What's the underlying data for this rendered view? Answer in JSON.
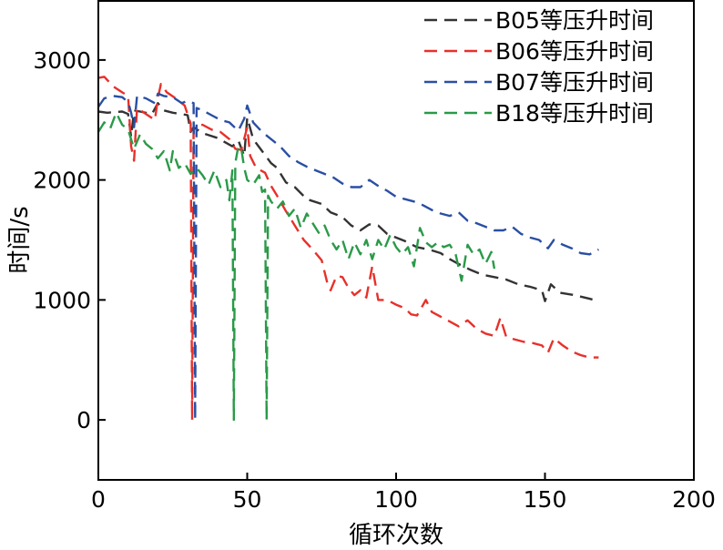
{
  "chart_data": {
    "type": "line",
    "xlabel": "循环次数",
    "ylabel": "时间/s",
    "xlim": [
      0,
      200
    ],
    "ylim": [
      -500,
      3500
    ],
    "x_ticks": [
      0,
      50,
      100,
      150,
      200
    ],
    "y_ticks": [
      0,
      1000,
      2000,
      3000
    ],
    "grid": false,
    "legend_position": "top-right",
    "line_style": "dashed",
    "series": [
      {
        "name": "B05等压升时间",
        "color": "#333333",
        "points": [
          [
            0,
            2570
          ],
          [
            3,
            2560
          ],
          [
            8,
            2570
          ],
          [
            10,
            2550
          ],
          [
            11,
            2360
          ],
          [
            12,
            2580
          ],
          [
            14,
            2570
          ],
          [
            18,
            2550
          ],
          [
            20,
            2640
          ],
          [
            22,
            2580
          ],
          [
            25,
            2560
          ],
          [
            28,
            2550
          ],
          [
            30,
            2540
          ],
          [
            31,
            2400
          ],
          [
            32,
            2440
          ],
          [
            35,
            2390
          ],
          [
            40,
            2350
          ],
          [
            45,
            2280
          ],
          [
            47,
            2330
          ],
          [
            49,
            2200
          ],
          [
            50,
            2520
          ],
          [
            52,
            2340
          ],
          [
            55,
            2240
          ],
          [
            58,
            2140
          ],
          [
            60,
            2100
          ],
          [
            63,
            1980
          ],
          [
            66,
            1940
          ],
          [
            70,
            1840
          ],
          [
            75,
            1800
          ],
          [
            78,
            1730
          ],
          [
            80,
            1710
          ],
          [
            82,
            1690
          ],
          [
            85,
            1620
          ],
          [
            88,
            1580
          ],
          [
            91,
            1630
          ],
          [
            94,
            1620
          ],
          [
            97,
            1550
          ],
          [
            100,
            1520
          ],
          [
            103,
            1490
          ],
          [
            107,
            1440
          ],
          [
            111,
            1420
          ],
          [
            115,
            1390
          ],
          [
            118,
            1340
          ],
          [
            121,
            1300
          ],
          [
            125,
            1250
          ],
          [
            129,
            1210
          ],
          [
            133,
            1190
          ],
          [
            137,
            1170
          ],
          [
            141,
            1130
          ],
          [
            145,
            1110
          ],
          [
            149,
            1080
          ],
          [
            150,
            990
          ],
          [
            152,
            1130
          ],
          [
            155,
            1060
          ],
          [
            160,
            1040
          ],
          [
            165,
            1010
          ],
          [
            168,
            990
          ]
        ]
      },
      {
        "name": "B06等压升时间",
        "color": "#e8302a",
        "points": [
          [
            0,
            2850
          ],
          [
            2,
            2860
          ],
          [
            5,
            2780
          ],
          [
            8,
            2730
          ],
          [
            10,
            2700
          ],
          [
            11,
            2280
          ],
          [
            12,
            2160
          ],
          [
            13,
            2600
          ],
          [
            16,
            2550
          ],
          [
            19,
            2500
          ],
          [
            20,
            2680
          ],
          [
            21,
            2800
          ],
          [
            23,
            2730
          ],
          [
            26,
            2680
          ],
          [
            29,
            2620
          ],
          [
            31,
            2470
          ],
          [
            31.5,
            0
          ],
          [
            32,
            2440
          ],
          [
            35,
            2460
          ],
          [
            38,
            2420
          ],
          [
            41,
            2400
          ],
          [
            44,
            2340
          ],
          [
            46,
            2260
          ],
          [
            48,
            2250
          ],
          [
            50,
            2440
          ],
          [
            51,
            2200
          ],
          [
            53,
            2100
          ],
          [
            56,
            2060
          ],
          [
            58,
            1950
          ],
          [
            60,
            1870
          ],
          [
            63,
            1740
          ],
          [
            66,
            1620
          ],
          [
            69,
            1500
          ],
          [
            72,
            1420
          ],
          [
            75,
            1330
          ],
          [
            77,
            1130
          ],
          [
            78,
            1080
          ],
          [
            80,
            1200
          ],
          [
            82,
            1190
          ],
          [
            84,
            1100
          ],
          [
            86,
            1040
          ],
          [
            88,
            1080
          ],
          [
            90,
            1020
          ],
          [
            92,
            1280
          ],
          [
            94,
            1000
          ],
          [
            97,
            1000
          ],
          [
            100,
            960
          ],
          [
            103,
            930
          ],
          [
            105,
            880
          ],
          [
            107,
            870
          ],
          [
            110,
            1000
          ],
          [
            112,
            900
          ],
          [
            115,
            860
          ],
          [
            118,
            820
          ],
          [
            121,
            780
          ],
          [
            124,
            830
          ],
          [
            127,
            760
          ],
          [
            130,
            720
          ],
          [
            133,
            700
          ],
          [
            135,
            850
          ],
          [
            137,
            690
          ],
          [
            140,
            670
          ],
          [
            143,
            650
          ],
          [
            146,
            640
          ],
          [
            149,
            620
          ],
          [
            151,
            560
          ],
          [
            153,
            680
          ],
          [
            156,
            620
          ],
          [
            159,
            570
          ],
          [
            162,
            540
          ],
          [
            165,
            520
          ],
          [
            168,
            520
          ]
        ]
      },
      {
        "name": "B07等压升时间",
        "color": "#2a4fa3",
        "points": [
          [
            0,
            2610
          ],
          [
            2,
            2680
          ],
          [
            5,
            2700
          ],
          [
            8,
            2690
          ],
          [
            10,
            2650
          ],
          [
            11,
            2560
          ],
          [
            12,
            2440
          ],
          [
            13,
            2700
          ],
          [
            16,
            2680
          ],
          [
            19,
            2640
          ],
          [
            20,
            2720
          ],
          [
            22,
            2700
          ],
          [
            25,
            2690
          ],
          [
            28,
            2640
          ],
          [
            30,
            2660
          ],
          [
            32,
            2640
          ],
          [
            32.5,
            0
          ],
          [
            33,
            2600
          ],
          [
            35,
            2580
          ],
          [
            38,
            2540
          ],
          [
            41,
            2500
          ],
          [
            44,
            2480
          ],
          [
            47,
            2410
          ],
          [
            49,
            2510
          ],
          [
            50,
            2620
          ],
          [
            52,
            2480
          ],
          [
            55,
            2400
          ],
          [
            58,
            2340
          ],
          [
            61,
            2280
          ],
          [
            64,
            2200
          ],
          [
            67,
            2150
          ],
          [
            70,
            2110
          ],
          [
            73,
            2080
          ],
          [
            76,
            2050
          ],
          [
            79,
            2020
          ],
          [
            82,
            1970
          ],
          [
            85,
            1940
          ],
          [
            88,
            1940
          ],
          [
            91,
            2000
          ],
          [
            94,
            1950
          ],
          [
            97,
            1910
          ],
          [
            100,
            1860
          ],
          [
            103,
            1840
          ],
          [
            106,
            1820
          ],
          [
            109,
            1790
          ],
          [
            112,
            1750
          ],
          [
            115,
            1720
          ],
          [
            118,
            1700
          ],
          [
            121,
            1730
          ],
          [
            124,
            1660
          ],
          [
            127,
            1640
          ],
          [
            130,
            1610
          ],
          [
            133,
            1580
          ],
          [
            136,
            1580
          ],
          [
            139,
            1610
          ],
          [
            142,
            1550
          ],
          [
            145,
            1520
          ],
          [
            148,
            1500
          ],
          [
            151,
            1430
          ],
          [
            153,
            1500
          ],
          [
            156,
            1460
          ],
          [
            159,
            1430
          ],
          [
            162,
            1390
          ],
          [
            165,
            1380
          ],
          [
            168,
            1420
          ]
        ]
      },
      {
        "name": "B18等压升时间",
        "color": "#2a9a48",
        "points": [
          [
            0,
            2400
          ],
          [
            2,
            2480
          ],
          [
            4,
            2430
          ],
          [
            6,
            2560
          ],
          [
            8,
            2460
          ],
          [
            10,
            2420
          ],
          [
            12,
            2260
          ],
          [
            14,
            2380
          ],
          [
            16,
            2300
          ],
          [
            18,
            2260
          ],
          [
            20,
            2180
          ],
          [
            22,
            2240
          ],
          [
            24,
            2080
          ],
          [
            25,
            2240
          ],
          [
            27,
            2100
          ],
          [
            29,
            2140
          ],
          [
            31,
            2050
          ],
          [
            33,
            2100
          ],
          [
            35,
            2040
          ],
          [
            37,
            1960
          ],
          [
            39,
            2080
          ],
          [
            41,
            1940
          ],
          [
            43,
            2000
          ],
          [
            44,
            1830
          ],
          [
            45,
            2080
          ],
          [
            45.5,
            0
          ],
          [
            46,
            2140
          ],
          [
            47,
            2280
          ],
          [
            48,
            2260
          ],
          [
            49,
            2100
          ],
          [
            50,
            2000
          ],
          [
            52,
            1960
          ],
          [
            54,
            2040
          ],
          [
            55,
            1900
          ],
          [
            56,
            1920
          ],
          [
            56.5,
            0
          ],
          [
            57,
            1870
          ],
          [
            58,
            1820
          ],
          [
            60,
            1760
          ],
          [
            62,
            1820
          ],
          [
            64,
            1700
          ],
          [
            66,
            1760
          ],
          [
            68,
            1600
          ],
          [
            70,
            1720
          ],
          [
            72,
            1640
          ],
          [
            74,
            1560
          ],
          [
            76,
            1620
          ],
          [
            78,
            1500
          ],
          [
            80,
            1420
          ],
          [
            82,
            1500
          ],
          [
            84,
            1340
          ],
          [
            86,
            1480
          ],
          [
            88,
            1380
          ],
          [
            90,
            1500
          ],
          [
            92,
            1340
          ],
          [
            94,
            1500
          ],
          [
            96,
            1420
          ],
          [
            98,
            1540
          ],
          [
            100,
            1440
          ],
          [
            102,
            1380
          ],
          [
            104,
            1440
          ],
          [
            106,
            1280
          ],
          [
            108,
            1600
          ],
          [
            110,
            1480
          ],
          [
            112,
            1440
          ],
          [
            114,
            1480
          ],
          [
            116,
            1440
          ],
          [
            118,
            1460
          ],
          [
            120,
            1380
          ],
          [
            122,
            1160
          ],
          [
            124,
            1460
          ],
          [
            126,
            1380
          ],
          [
            128,
            1420
          ],
          [
            130,
            1300
          ],
          [
            132,
            1400
          ],
          [
            133,
            1260
          ]
        ]
      }
    ]
  }
}
